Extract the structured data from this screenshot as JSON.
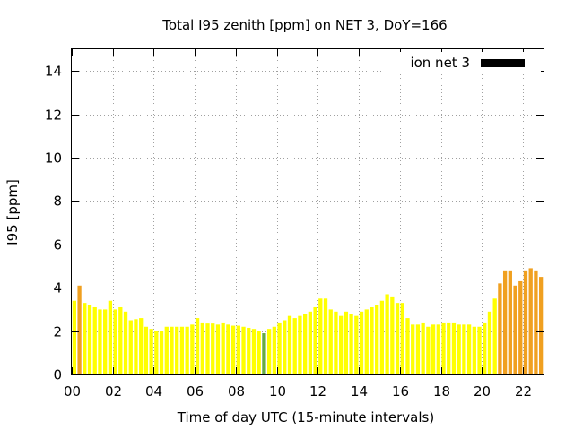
{
  "chart_data": {
    "type": "bar",
    "title": "Total I95 zenith [ppm] on NET 3, DoY=166",
    "xlabel": "Time of day UTC (15-minute intervals)",
    "ylabel": "I95 [ppm]",
    "xlim": [
      0,
      23
    ],
    "ylim": [
      0,
      15
    ],
    "x_ticks": [
      0,
      2,
      4,
      6,
      8,
      10,
      12,
      14,
      16,
      18,
      20,
      22
    ],
    "x_tick_labels": [
      "00",
      "02",
      "04",
      "06",
      "08",
      "10",
      "12",
      "14",
      "16",
      "18",
      "20",
      "22"
    ],
    "y_ticks": [
      0,
      2,
      4,
      6,
      8,
      10,
      12,
      14
    ],
    "y_tick_labels": [
      "0",
      "2",
      "4",
      "6",
      "8",
      "10",
      "12",
      "14"
    ],
    "grid": true,
    "legend_position": "top-right",
    "series": [
      {
        "name": "ion net 3",
        "legend_color": "#000000",
        "bar_interval_hours": 0.25,
        "x_start": 0,
        "values": [
          3.4,
          4.1,
          3.3,
          3.2,
          3.1,
          3.0,
          3.0,
          3.4,
          3.0,
          3.1,
          2.9,
          2.5,
          2.55,
          2.6,
          2.2,
          2.1,
          2.0,
          2.0,
          2.2,
          2.2,
          2.2,
          2.2,
          2.2,
          2.3,
          2.6,
          2.4,
          2.35,
          2.35,
          2.3,
          2.4,
          2.3,
          2.25,
          2.25,
          2.2,
          2.15,
          2.1,
          2.0,
          1.9,
          2.1,
          2.2,
          2.4,
          2.5,
          2.7,
          2.6,
          2.7,
          2.8,
          2.9,
          3.1,
          3.5,
          3.5,
          3.0,
          2.9,
          2.7,
          2.9,
          2.8,
          2.7,
          2.9,
          3.0,
          3.1,
          3.2,
          3.4,
          3.7,
          3.6,
          3.3,
          3.3,
          2.6,
          2.3,
          2.3,
          2.4,
          2.2,
          2.3,
          2.3,
          2.4,
          2.4,
          2.4,
          2.3,
          2.3,
          2.3,
          2.2,
          2.2,
          2.4,
          2.9,
          3.5,
          4.2,
          4.8,
          4.8,
          4.1,
          4.3,
          4.8,
          4.9,
          4.8,
          4.5
        ],
        "colors": [
          "#ffff00",
          "#f0a020",
          "#ffff00",
          "#ffff00",
          "#ffff00",
          "#ffff00",
          "#ffff00",
          "#ffff00",
          "#ffff00",
          "#ffff00",
          "#ffff00",
          "#ffff00",
          "#ffff00",
          "#ffff00",
          "#ffff00",
          "#ffff00",
          "#ffff00",
          "#ffff00",
          "#ffff00",
          "#ffff00",
          "#ffff00",
          "#ffff00",
          "#ffff00",
          "#ffff00",
          "#ffff00",
          "#ffff00",
          "#ffff00",
          "#ffff00",
          "#ffff00",
          "#ffff00",
          "#ffff00",
          "#ffff00",
          "#ffff00",
          "#ffff00",
          "#ffff00",
          "#ffff00",
          "#ffff00",
          "#66aa44",
          "#ffff00",
          "#ffff00",
          "#ffff00",
          "#ffff00",
          "#ffff00",
          "#ffff00",
          "#ffff00",
          "#ffff00",
          "#ffff00",
          "#ffff00",
          "#ffff00",
          "#ffff00",
          "#ffff00",
          "#ffff00",
          "#ffff00",
          "#ffff00",
          "#ffff00",
          "#ffff00",
          "#ffff00",
          "#ffff00",
          "#ffff00",
          "#ffff00",
          "#ffff00",
          "#ffff00",
          "#ffff00",
          "#ffff00",
          "#ffff00",
          "#ffff00",
          "#ffff00",
          "#ffff00",
          "#ffff00",
          "#ffff00",
          "#ffff00",
          "#ffff00",
          "#ffff00",
          "#ffff00",
          "#ffff00",
          "#ffff00",
          "#ffff00",
          "#ffff00",
          "#ffff00",
          "#ffff00",
          "#ffff00",
          "#ffff00",
          "#ffff00",
          "#f0a020",
          "#f0a020",
          "#f0a020",
          "#f0a020",
          "#f0a020",
          "#f0a020",
          "#f0a020",
          "#f0a020",
          "#f0a020"
        ]
      }
    ]
  }
}
